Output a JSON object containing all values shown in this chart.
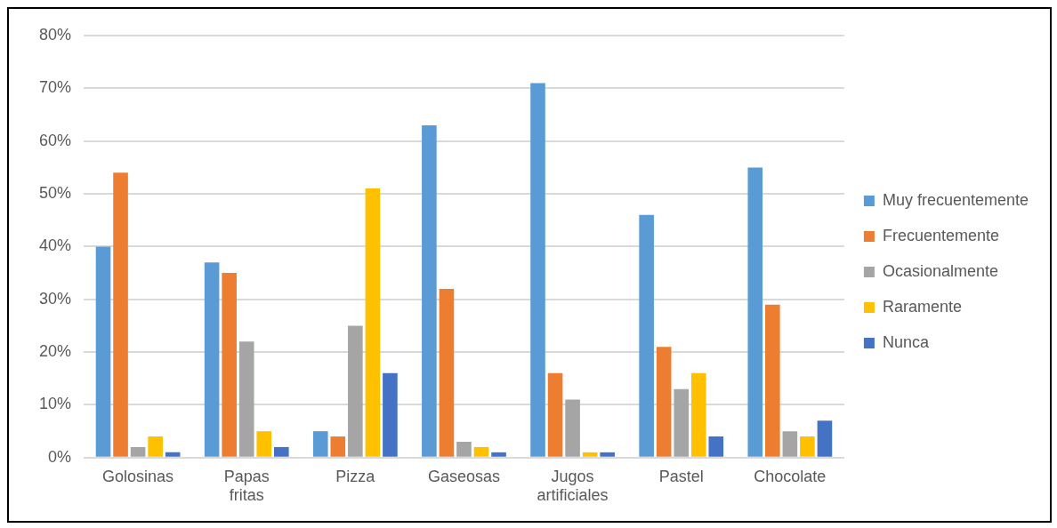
{
  "chart_data": {
    "type": "bar",
    "categories": [
      "Golosinas",
      "Papas fritas",
      "Pizza",
      "Gaseosas",
      "Jugos artificiales",
      "Pastel",
      "Chocolate"
    ],
    "series": [
      {
        "name": "Muy frecuentemente",
        "color": "#5b9bd5",
        "values": [
          40,
          37,
          5,
          63,
          71,
          46,
          55
        ]
      },
      {
        "name": "Frecuentemente",
        "color": "#ed7d31",
        "values": [
          54,
          35,
          4,
          32,
          16,
          21,
          29
        ]
      },
      {
        "name": "Ocasionalmente",
        "color": "#a5a5a5",
        "values": [
          2,
          22,
          25,
          3,
          11,
          13,
          5
        ]
      },
      {
        "name": "Raramente",
        "color": "#ffc000",
        "values": [
          4,
          5,
          51,
          2,
          1,
          16,
          4
        ]
      },
      {
        "name": "Nunca",
        "color": "#4472c4",
        "values": [
          1,
          2,
          16,
          1,
          1,
          4,
          7
        ]
      }
    ],
    "ylim": [
      0,
      80
    ],
    "yticks": [
      {
        "value": 0,
        "label": "0%"
      },
      {
        "value": 10,
        "label": "10%"
      },
      {
        "value": 20,
        "label": "20%"
      },
      {
        "value": 30,
        "label": "30%"
      },
      {
        "value": 40,
        "label": "40%"
      },
      {
        "value": 50,
        "label": "50%"
      },
      {
        "value": 60,
        "label": "60%"
      },
      {
        "value": 70,
        "label": "70%"
      },
      {
        "value": 80,
        "label": "80%"
      }
    ],
    "grid": "y",
    "legend": "right"
  }
}
